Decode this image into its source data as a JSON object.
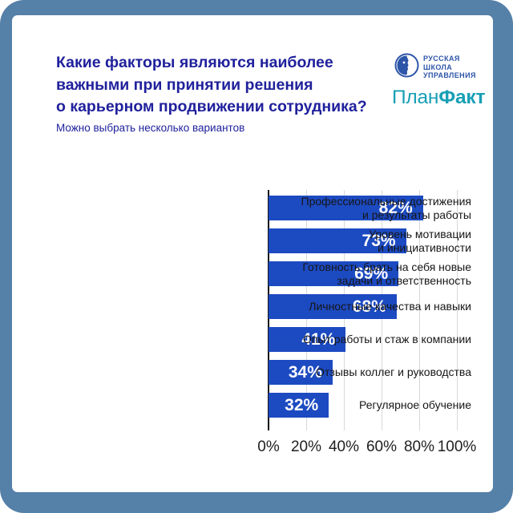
{
  "page": {
    "frame_color": "#5580a8",
    "card_color": "#ffffff",
    "title_color": "#20219c"
  },
  "header": {
    "title_line1": "Какие факторы являются наиболее",
    "title_line2": "важными при принятии решения",
    "title_line3": "о карьерном продвижении сотрудника?",
    "subtitle": "Можно выбрать несколько вариантов"
  },
  "logos": {
    "rsu_color": "#2d55a8",
    "rsu_line1": "РУССКАЯ",
    "rsu_line2": "ШКОЛА",
    "rsu_line3": "УПРАВЛЕНИЯ",
    "planfact_color": "#189fb5",
    "planfact_regular": "План",
    "planfact_bold": "Факт"
  },
  "chart_data": {
    "type": "bar",
    "orientation": "horizontal",
    "title": "Какие факторы являются наиболее важными при принятии решения о карьерном продвижении сотрудника?",
    "subtitle": "Можно выбрать несколько вариантов",
    "categories": [
      [
        "Профессиональные достижения",
        "и результаты работы"
      ],
      [
        "Уровень мотивации",
        "и инициативности"
      ],
      [
        "Готовность брать на себя новые",
        "задачи и ответственность"
      ],
      [
        "Личностные качества и навыки"
      ],
      [
        "Опыт работы и стаж в компании"
      ],
      [
        "Отзывы коллег и руководства"
      ],
      [
        "Регулярное обучение"
      ]
    ],
    "values": [
      82,
      73,
      69,
      68,
      41,
      34,
      32
    ],
    "value_labels": [
      "82%",
      "73%",
      "69%",
      "68%",
      "41%",
      "34%",
      "32%"
    ],
    "x_ticks": [
      "0%",
      "20%",
      "40%",
      "60%",
      "80%",
      "100%"
    ],
    "xlim": [
      0,
      100
    ],
    "grid": true,
    "bar_color": "#1c4ac1",
    "value_label_position": "inside-right",
    "legend": "none"
  }
}
